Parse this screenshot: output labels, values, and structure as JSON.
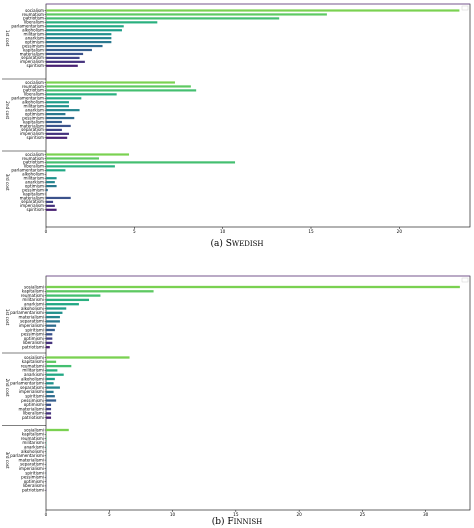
{
  "charts": [
    {
      "id": "swedish",
      "caption_label": "(a)",
      "caption_lang": "SWEDISH",
      "xticks": [
        0,
        5,
        10,
        15,
        20
      ],
      "chart_data": {
        "type": "bar",
        "orientation": "horizontal",
        "title": "",
        "xlabel": "",
        "ylabel": "",
        "xlim": [
          0,
          24
        ],
        "grid": false,
        "legend": "top-right",
        "groups": [
          {
            "label": "1st cost",
            "categories": [
              "socialism",
              "reumatism",
              "patriotism",
              "liberalism",
              "parlamentarism",
              "alkoholism",
              "militarism",
              "anarkism",
              "optimism",
              "pessimism",
              "kapitalism",
              "materialism",
              "separatism",
              "imperialism",
              "spiritism"
            ],
            "values": [
              23.4,
              15.9,
              13.2,
              6.3,
              4.4,
              4.3,
              3.7,
              3.7,
              3.7,
              3.2,
              2.6,
              2.1,
              1.9,
              2.2,
              1.8
            ]
          },
          {
            "label": "2nd cost",
            "categories": [
              "socialism",
              "reumatism",
              "patriotism",
              "liberalism",
              "parlamentarism",
              "alkoholism",
              "militarism",
              "anarkism",
              "optimism",
              "pessimism",
              "kapitalism",
              "materialism",
              "separatism",
              "imperialism",
              "spiritism"
            ],
            "values": [
              7.3,
              8.2,
              8.5,
              4.0,
              2.0,
              1.3,
              1.3,
              1.9,
              1.1,
              1.6,
              0.9,
              1.4,
              0.9,
              1.3,
              1.2
            ]
          },
          {
            "label": "3rd cost",
            "categories": [
              "socialism",
              "reumatism",
              "patriotism",
              "liberalism",
              "parlamentarism",
              "alkoholism",
              "militarism",
              "anarkism",
              "optimism",
              "pessimism",
              "kapitalism",
              "materialism",
              "separatism",
              "imperialism",
              "spiritism"
            ],
            "values": [
              4.7,
              3.0,
              10.7,
              3.9,
              1.1,
              0.0,
              0.6,
              0.5,
              0.6,
              0.1,
              0.0,
              1.4,
              0.4,
              0.5,
              0.6
            ]
          }
        ]
      }
    },
    {
      "id": "finnish",
      "caption_label": "(b)",
      "caption_lang": "FINNISH",
      "xticks": [
        0,
        5,
        10,
        15,
        20,
        25,
        30
      ],
      "chart_data": {
        "type": "bar",
        "orientation": "horizontal",
        "title": "",
        "xlabel": "",
        "ylabel": "",
        "xlim": [
          0,
          33.5
        ],
        "grid": false,
        "legend": "top-right",
        "groups": [
          {
            "label": "1st cost",
            "categories": [
              "sosialismi",
              "kapitalismi",
              "reumatismi",
              "militarismi",
              "anarkismi",
              "alkoholismi",
              "parlamentarismi",
              "materialismi",
              "separatismi",
              "imperialismi",
              "spiritismi",
              "pessimismi",
              "optimismi",
              "liberalismi",
              "patriotismi"
            ],
            "values": [
              32.7,
              8.5,
              4.3,
              3.4,
              2.6,
              1.6,
              1.3,
              1.1,
              1.1,
              0.8,
              0.7,
              0.5,
              0.5,
              0.5,
              0.3
            ]
          },
          {
            "label": "2nd cost",
            "categories": [
              "sosialismi",
              "kapitalismi",
              "reumatismi",
              "militarismi",
              "anarkismi",
              "alkoholismi",
              "parlamentarismi",
              "separatismi",
              "imperialismi",
              "spiritismi",
              "pessimismi",
              "optimismi",
              "materialismi",
              "liberalismi",
              "patriotismi"
            ],
            "values": [
              6.6,
              0.8,
              2.0,
              0.9,
              1.4,
              0.7,
              0.6,
              1.1,
              0.6,
              0.7,
              0.8,
              0.4,
              0.4,
              0.4,
              0.4
            ]
          },
          {
            "label": "3rd cost",
            "categories": [
              "sosialismi",
              "kapitalismi",
              "reumatismi",
              "militarismi",
              "anarkismi",
              "alkoholismi",
              "parlamentarismi",
              "materialismi",
              "separatismi",
              "imperialismi",
              "spiritismi",
              "pessimismi",
              "optimismi",
              "liberalismi",
              "patriotismi"
            ],
            "values": [
              1.8,
              0.05,
              0.05,
              0.03,
              0.03,
              0.02,
              0.02,
              0.02,
              0.02,
              0.02,
              0.02,
              0.02,
              0.02,
              0.02,
              0.02
            ]
          }
        ]
      }
    }
  ]
}
